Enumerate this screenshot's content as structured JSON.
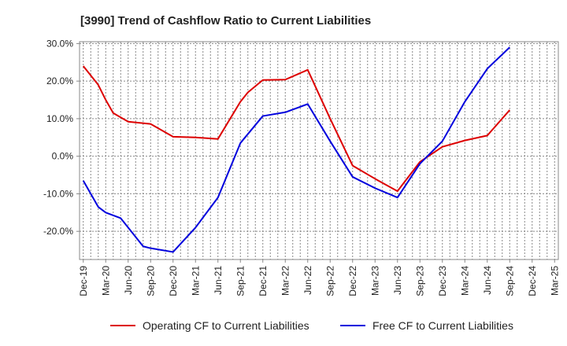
{
  "chart_data": {
    "type": "line",
    "title": "[3990]  Trend of Cashflow Ratio to Current Liabilities",
    "xlabel": "",
    "ylabel": "",
    "ylim": [
      -27.5,
      30.5
    ],
    "yticks": [
      30,
      20,
      10,
      0,
      -10,
      -20
    ],
    "ytick_labels": [
      "30.0%",
      "20.0%",
      "10.0%",
      "0.0%",
      "-10.0%",
      "-20.0%"
    ],
    "x_tick_labels": [
      "Dec-19",
      "Mar-20",
      "Jun-20",
      "Sep-20",
      "Dec-20",
      "Mar-21",
      "Jun-21",
      "Sep-21",
      "Dec-21",
      "Mar-22",
      "Jun-22",
      "Sep-22",
      "Dec-22",
      "Mar-23",
      "Jun-23",
      "Sep-23",
      "Dec-23",
      "Mar-24",
      "Jun-24",
      "Sep-24",
      "Dec-24",
      "Mar-25"
    ],
    "quarters": [
      "Dec-19",
      "Jan-20",
      "Feb-20",
      "Mar-20",
      "Apr-20",
      "May-20",
      "Jun-20",
      "Jul-20",
      "Aug-20",
      "Sep-20",
      "Oct-20",
      "Nov-20",
      "Dec-20",
      "Jan-21",
      "Feb-21",
      "Mar-21",
      "Apr-21",
      "May-21",
      "Jun-21",
      "Jul-21",
      "Aug-21",
      "Sep-21",
      "Oct-21",
      "Nov-21",
      "Dec-21",
      "Jan-22",
      "Feb-22",
      "Mar-22",
      "Apr-22",
      "May-22",
      "Jun-22",
      "Jul-22",
      "Aug-22",
      "Sep-22",
      "Oct-22",
      "Nov-22",
      "Dec-22",
      "Jan-23",
      "Feb-23",
      "Mar-23",
      "Apr-23",
      "May-23",
      "Jun-23",
      "Jul-23",
      "Aug-23",
      "Sep-23",
      "Oct-23",
      "Nov-23",
      "Dec-23",
      "Jan-24",
      "Feb-24",
      "Mar-24",
      "Apr-24",
      "May-24",
      "Jun-24",
      "Jul-24",
      "Aug-24",
      "Sep-24",
      "Oct-24",
      "Nov-24",
      "Dec-24",
      "Jan-25",
      "Feb-25",
      "Mar-25"
    ],
    "series": [
      {
        "name": "Operating CF to Current Liabilities",
        "color": "#dd0000",
        "points": [
          [
            "Dec-19",
            24.0
          ],
          [
            "Feb-20",
            19.0
          ],
          [
            "Mar-20",
            15.0
          ],
          [
            "Apr-20",
            11.5
          ],
          [
            "Jun-20",
            9.2
          ],
          [
            "Sep-20",
            8.6
          ],
          [
            "Dec-20",
            5.2
          ],
          [
            "Mar-21",
            5.0
          ],
          [
            "Jun-21",
            4.6
          ],
          [
            "Sep-21",
            14.5
          ],
          [
            "Oct-21",
            17.0
          ],
          [
            "Dec-21",
            20.3
          ],
          [
            "Mar-22",
            20.4
          ],
          [
            "Jun-22",
            23.0
          ],
          [
            "Sep-22",
            10.0
          ],
          [
            "Dec-22",
            -2.5
          ],
          [
            "Mar-23",
            -6.0
          ],
          [
            "Jun-23",
            -9.3
          ],
          [
            "Sep-23",
            -1.5
          ],
          [
            "Dec-23",
            2.5
          ],
          [
            "Mar-24",
            4.2
          ],
          [
            "Jun-24",
            5.5
          ],
          [
            "Sep-24",
            12.3
          ]
        ]
      },
      {
        "name": "Free CF to Current Liabilities",
        "color": "#0000dd",
        "points": [
          [
            "Dec-19",
            -6.5
          ],
          [
            "Feb-20",
            -13.5
          ],
          [
            "Mar-20",
            -15.0
          ],
          [
            "May-20",
            -16.5
          ],
          [
            "Jun-20",
            -19.0
          ],
          [
            "Aug-20",
            -24.0
          ],
          [
            "Sep-20",
            -24.5
          ],
          [
            "Dec-20",
            -25.5
          ],
          [
            "Mar-21",
            -19.0
          ],
          [
            "Jun-21",
            -11.0
          ],
          [
            "Sep-21",
            3.5
          ],
          [
            "Dec-21",
            10.7
          ],
          [
            "Mar-22",
            11.7
          ],
          [
            "Jun-22",
            13.9
          ],
          [
            "Sep-22",
            4.0
          ],
          [
            "Dec-22",
            -5.5
          ],
          [
            "Mar-23",
            -8.5
          ],
          [
            "Jun-23",
            -11.0
          ],
          [
            "Sep-23",
            -2.0
          ],
          [
            "Dec-23",
            4.0
          ],
          [
            "Mar-24",
            14.5
          ],
          [
            "Jun-24",
            23.3
          ],
          [
            "Sep-24",
            29.0
          ]
        ]
      }
    ],
    "grid": true,
    "legend_position": "bottom"
  },
  "colors": {
    "operating": "#dd0000",
    "free": "#0000dd",
    "grid": "#888888",
    "axis": "#888888"
  }
}
